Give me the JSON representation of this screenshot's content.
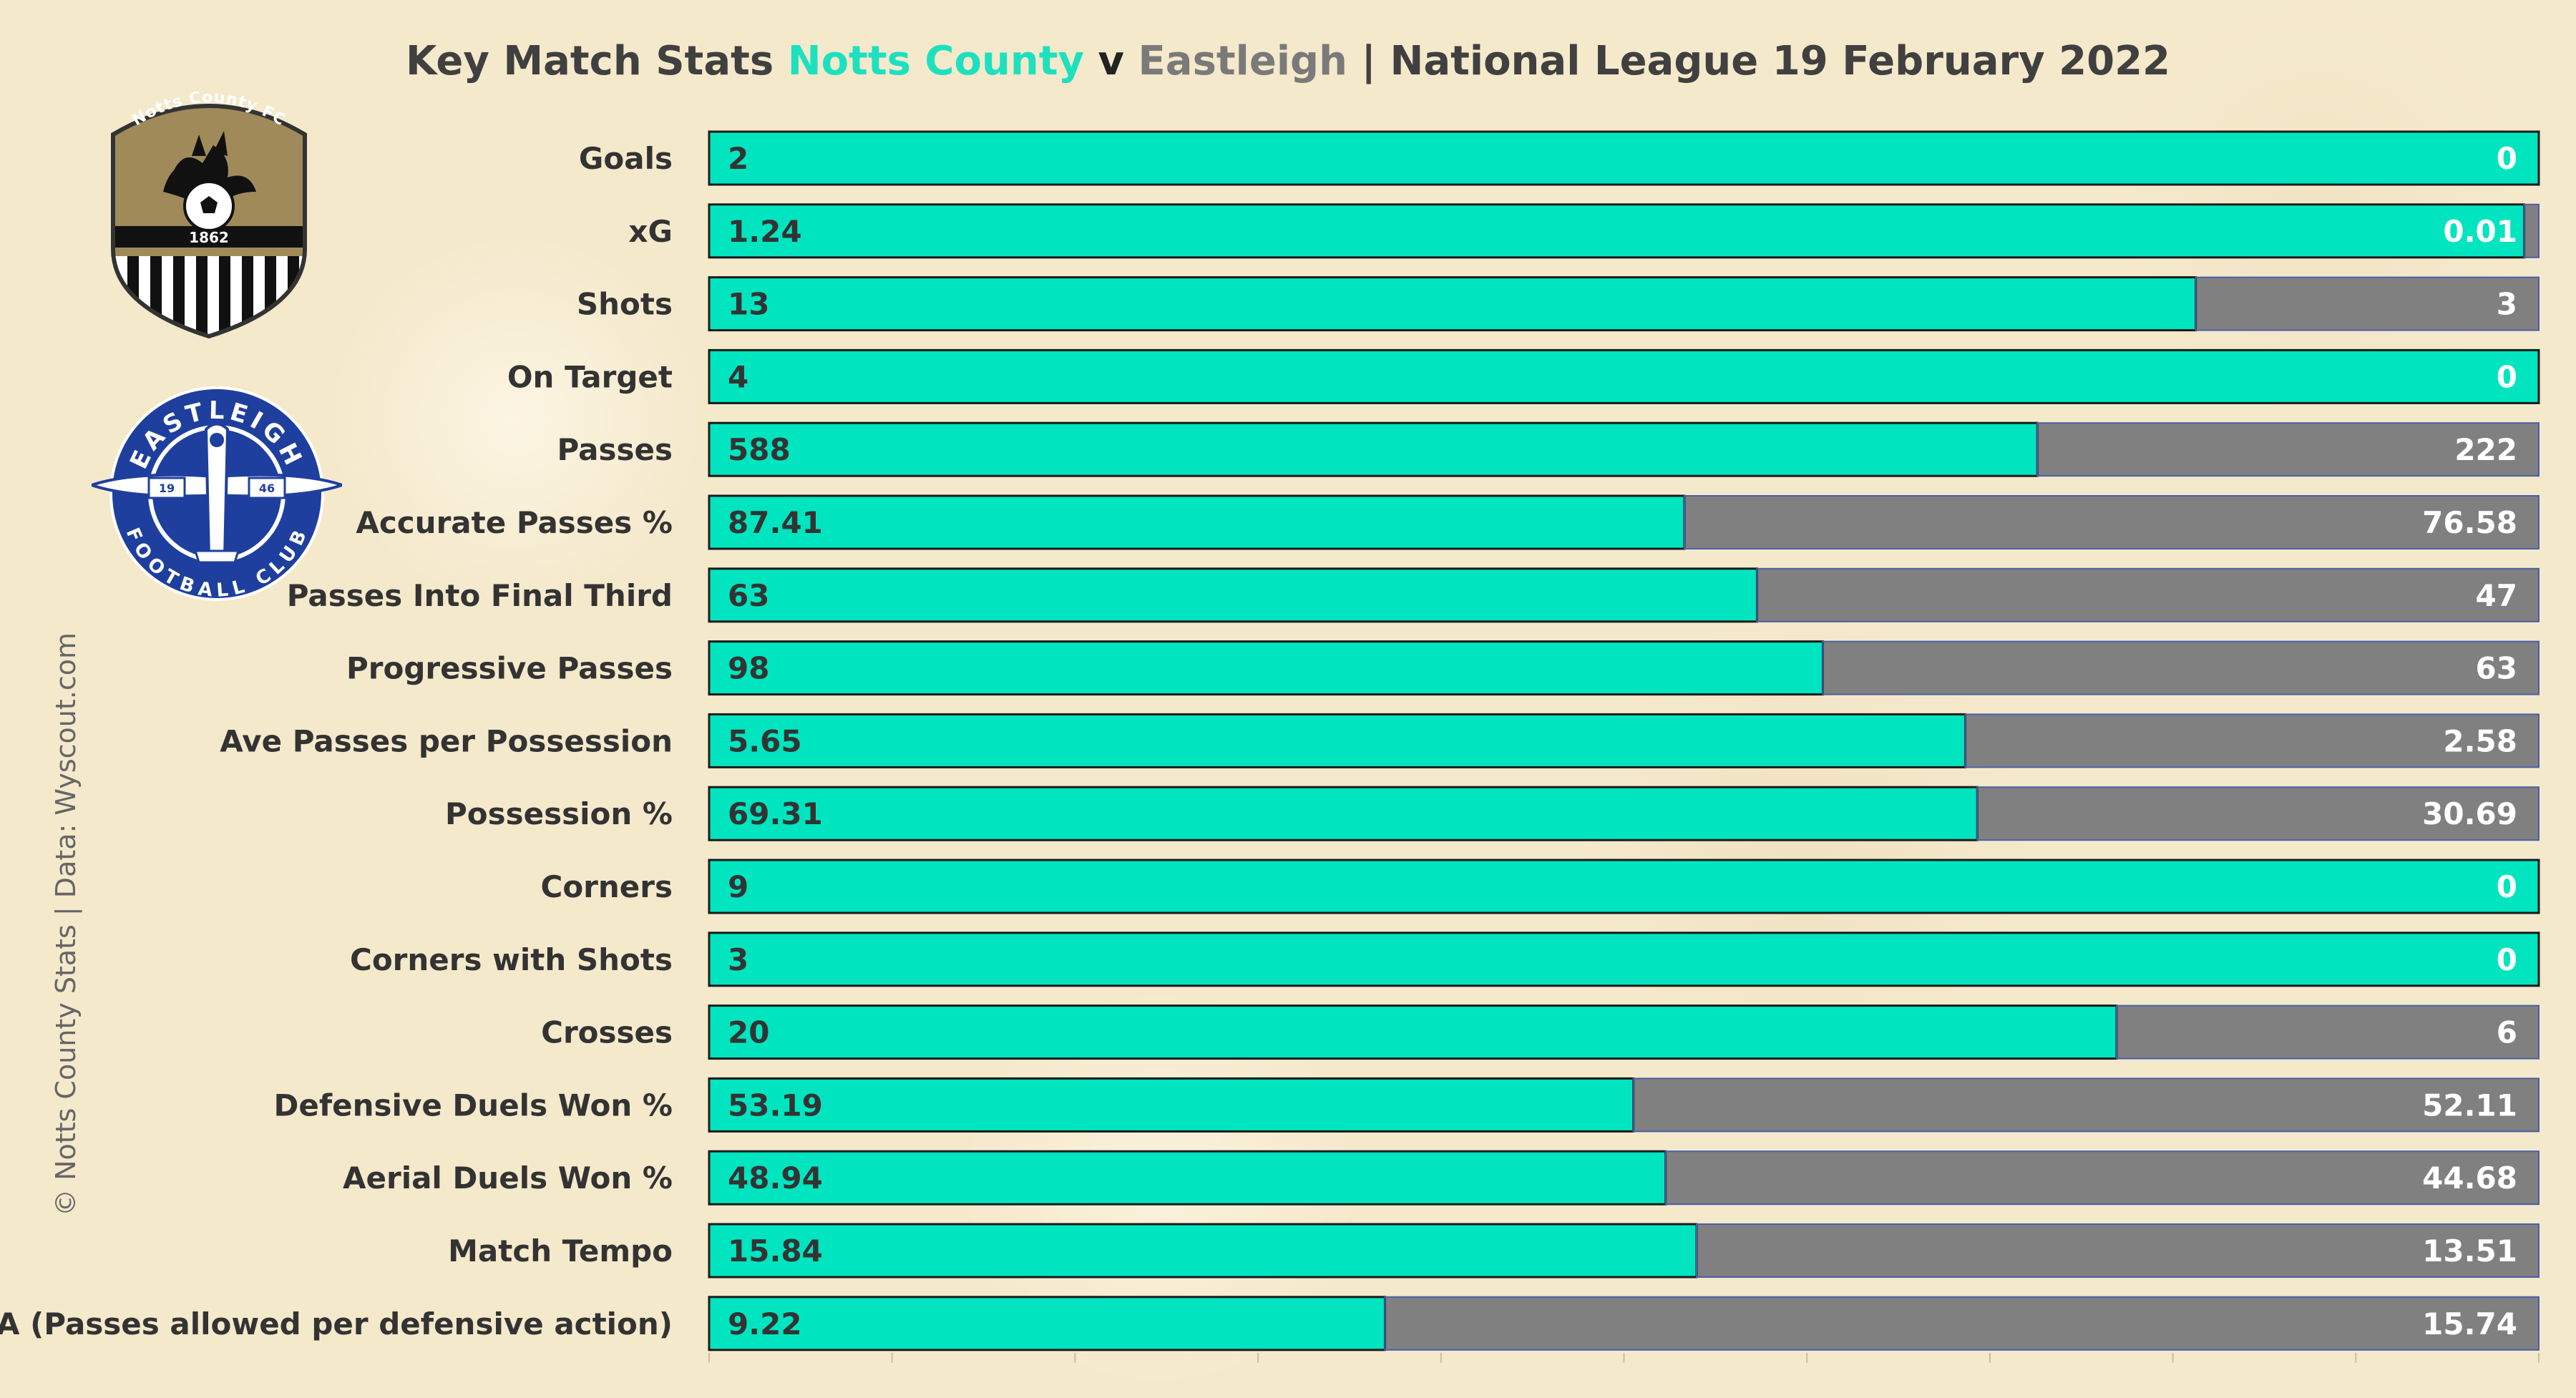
{
  "title": {
    "prefix": "Key Match Stats",
    "home": "Notts County",
    "vs": "v",
    "away": "Eastleigh",
    "suffix": "| National League 19 February 2022"
  },
  "credit": "© Notts County Stats | Data: Wyscout.com",
  "logos": {
    "home": {
      "ring_text": "Notts County FC",
      "year": "1862"
    },
    "away": {
      "ring_top": "EASTLEIGH",
      "ring_bottom": "FOOTBALL CLUB",
      "year_left": "19",
      "year_right": "46"
    }
  },
  "colors": {
    "home": "#00e5c0",
    "away": "#808080",
    "bar_border": "#1a1a1a"
  },
  "chart_data": {
    "type": "bar",
    "orientation": "horizontal",
    "stacking": "percent",
    "categories": [
      "Goals",
      "xG",
      "Shots",
      "On Target",
      "Passes",
      "Accurate Passes %",
      "Passes Into Final Third",
      "Progressive Passes",
      "Ave Passes per Possession",
      "Possession %",
      "Corners",
      "Corners with Shots",
      "Crosses",
      "Defensive Duels Won %",
      "Aerial Duels Won %",
      "Match Tempo",
      "PPDA (Passes allowed per defensive action)"
    ],
    "series": [
      {
        "name": "Notts County",
        "labels": [
          "2",
          "1.24",
          "13",
          "4",
          "588",
          "87.41",
          "63",
          "98",
          "5.65",
          "69.31",
          "9",
          "3",
          "20",
          "53.19",
          "48.94",
          "15.84",
          "9.22"
        ],
        "values": [
          2,
          1.24,
          13,
          4,
          588,
          87.41,
          63,
          98,
          5.65,
          69.31,
          9,
          3,
          20,
          53.19,
          48.94,
          15.84,
          9.22
        ]
      },
      {
        "name": "Eastleigh",
        "labels": [
          "0",
          "0.01",
          "3",
          "0",
          "222",
          "76.58",
          "47",
          "63",
          "2.58",
          "30.69",
          "0",
          "0",
          "6",
          "52.11",
          "44.68",
          "13.51",
          "15.74"
        ],
        "values": [
          0,
          0.01,
          3,
          0,
          222,
          76.58,
          47,
          63,
          2.58,
          30.69,
          0,
          0,
          6,
          52.11,
          44.68,
          13.51,
          15.74
        ]
      }
    ],
    "grid": false,
    "legend": "none"
  }
}
